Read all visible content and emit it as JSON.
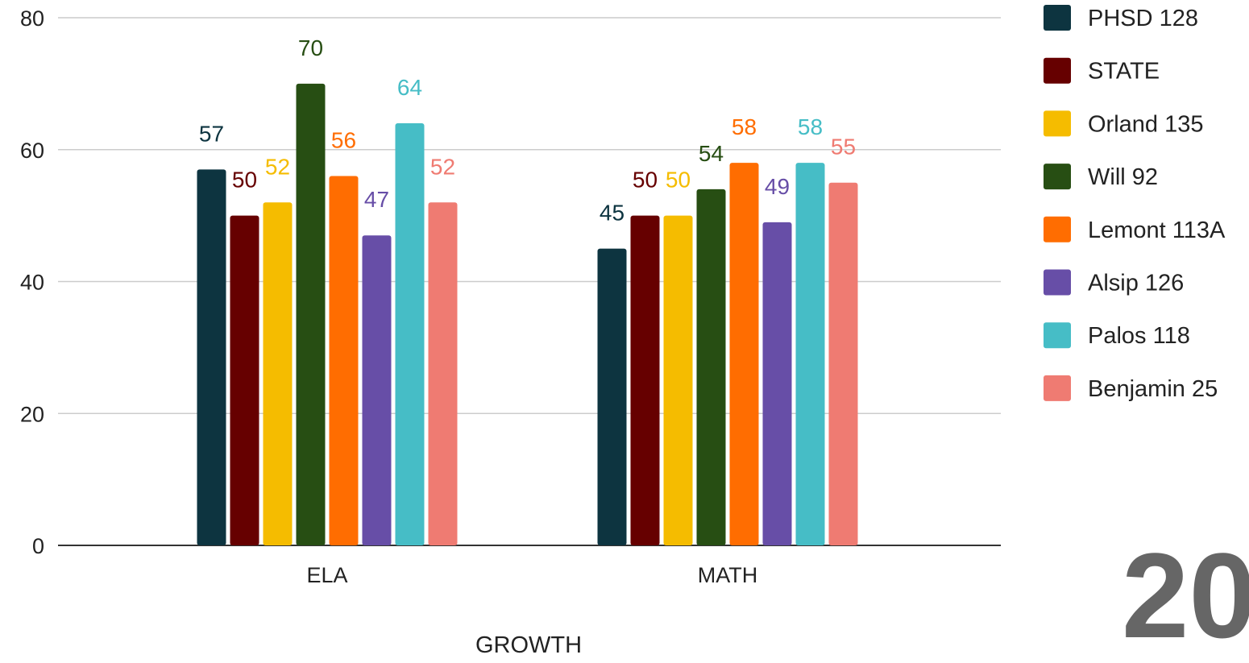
{
  "chart_data": {
    "type": "bar",
    "title": "",
    "xlabel": "GROWTH",
    "ylabel": "",
    "ylim": [
      0,
      80
    ],
    "yticks": [
      0,
      20,
      40,
      60,
      80
    ],
    "grid": true,
    "legend_position": "right",
    "categories": [
      "ELA",
      "MATH"
    ],
    "series": [
      {
        "name": "PHSD 128",
        "color": "#0d3440",
        "values": [
          57,
          45
        ]
      },
      {
        "name": "STATE",
        "color": "#660000",
        "values": [
          50,
          50
        ]
      },
      {
        "name": "Orland 135",
        "color": "#f5bc00",
        "values": [
          52,
          50
        ]
      },
      {
        "name": "Will 92",
        "color": "#274e13",
        "values": [
          70,
          54
        ]
      },
      {
        "name": "Lemont 113A",
        "color": "#ff6d01",
        "values": [
          56,
          58
        ]
      },
      {
        "name": "Alsip 126",
        "color": "#674ea7",
        "values": [
          47,
          49
        ]
      },
      {
        "name": "Palos 118",
        "color": "#46bdc6",
        "values": [
          64,
          58
        ]
      },
      {
        "name": "Benjamin 25",
        "color": "#ef7b72",
        "values": [
          52,
          55
        ]
      }
    ]
  },
  "corner_text": "20"
}
